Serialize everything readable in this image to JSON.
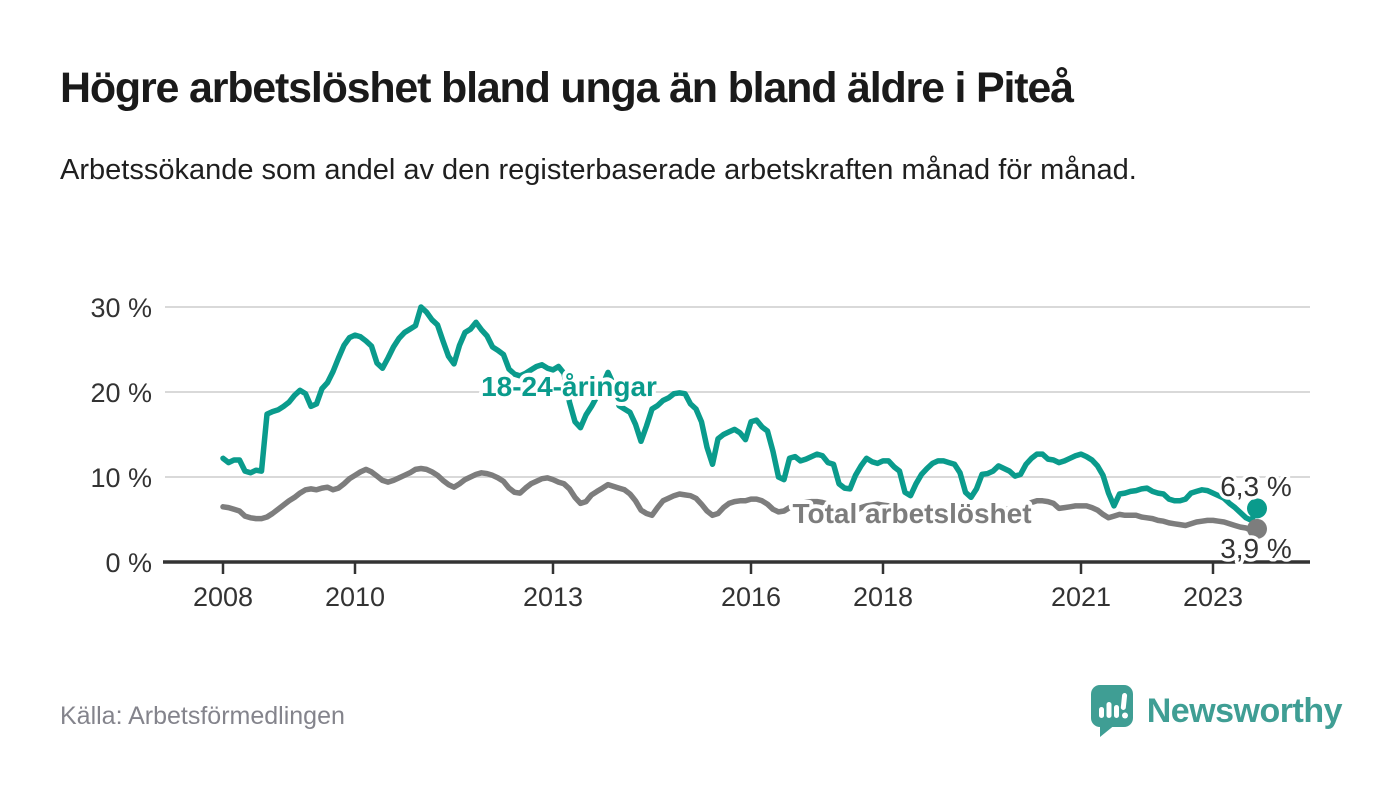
{
  "header": {
    "title": "Högre arbetslöshet bland unga än bland äldre i Piteå",
    "subtitle": "Arbetssökande som andel av den registerbaserade arbetskraften månad för månad."
  },
  "footer": {
    "source": "Källa: Arbetsförmedlingen",
    "brand_name": "Newsworthy"
  },
  "colors": {
    "young_line": "#0a9b8c",
    "total_line": "#7d7d7d",
    "axis": "#333333",
    "grid": "#d9d9d9",
    "title_text": "#1a1a1a",
    "muted_text": "#84848c",
    "brand_teal": "#3f9e94"
  },
  "chart_data": {
    "type": "line",
    "unit": "%",
    "frequency": "monthly",
    "x_start": "2008-01",
    "x_end": "2023-09",
    "grid": "horizontal",
    "ylim": [
      0,
      32
    ],
    "x_ticks": [
      2008,
      2010,
      2013,
      2016,
      2018,
      2021,
      2023
    ],
    "y_ticks": [
      0,
      10,
      20,
      30
    ],
    "y_tick_labels": [
      "0 %",
      "10 %",
      "20 %",
      "30 %"
    ],
    "series": [
      {
        "name": "18-24-åringar",
        "color": "#0a9b8c",
        "end_label": "6,3 %",
        "values": [
          12.2,
          11.7,
          12.0,
          12.0,
          10.7,
          10.5,
          10.8,
          10.7,
          17.4,
          17.7,
          17.9,
          18.3,
          18.8,
          19.6,
          20.2,
          19.8,
          18.3,
          18.6,
          20.4,
          21.1,
          22.4,
          24.0,
          25.5,
          26.4,
          26.7,
          26.5,
          26.0,
          25.4,
          23.4,
          22.8,
          24.0,
          25.3,
          26.3,
          27.0,
          27.4,
          27.8,
          30.0,
          29.4,
          28.5,
          27.9,
          26.0,
          24.2,
          23.3,
          25.5,
          27.0,
          27.4,
          28.2,
          27.3,
          26.6,
          25.3,
          24.9,
          24.4,
          22.7,
          22.1,
          21.9,
          22.2,
          22.6,
          23.0,
          23.2,
          22.8,
          22.6,
          23.0,
          22.2,
          18.8,
          16.5,
          15.8,
          17.3,
          18.3,
          19.5,
          20.8,
          22.3,
          20.9,
          18.4,
          18.0,
          17.6,
          16.2,
          14.2,
          16.0,
          18.0,
          18.4,
          19.0,
          19.3,
          19.8,
          19.9,
          19.8,
          18.6,
          18.0,
          16.5,
          13.5,
          11.5,
          14.5,
          15.0,
          15.3,
          15.6,
          15.2,
          14.4,
          16.5,
          16.7,
          15.9,
          15.4,
          13.0,
          10.0,
          9.7,
          12.2,
          12.4,
          11.9,
          12.1,
          12.4,
          12.7,
          12.5,
          11.7,
          11.5,
          9.2,
          8.7,
          8.6,
          10.2,
          11.3,
          12.2,
          11.8,
          11.6,
          11.9,
          11.9,
          11.2,
          10.7,
          8.2,
          7.8,
          9.2,
          10.3,
          11.0,
          11.6,
          11.9,
          11.9,
          11.7,
          11.5,
          10.5,
          8.2,
          7.6,
          8.6,
          10.3,
          10.4,
          10.7,
          11.3,
          11.0,
          10.7,
          10.1,
          10.3,
          11.5,
          12.2,
          12.7,
          12.7,
          12.1,
          12.0,
          11.7,
          11.9,
          12.2,
          12.5,
          12.7,
          12.4,
          12.0,
          11.3,
          10.2,
          8.1,
          6.6,
          8.0,
          8.1,
          8.3,
          8.4,
          8.6,
          8.7,
          8.3,
          8.1,
          8.0,
          7.4,
          7.2,
          7.2,
          7.4,
          8.1,
          8.3,
          8.5,
          8.4,
          8.1,
          7.8,
          7.5,
          6.9,
          6.4,
          5.8,
          5.2,
          4.9,
          6.3
        ]
      },
      {
        "name": "Total arbetslöshet",
        "color": "#7d7d7d",
        "end_label": "3,9 %",
        "values": [
          6.5,
          6.4,
          6.2,
          6.0,
          5.4,
          5.2,
          5.1,
          5.1,
          5.3,
          5.7,
          6.2,
          6.7,
          7.2,
          7.6,
          8.1,
          8.5,
          8.6,
          8.5,
          8.7,
          8.8,
          8.5,
          8.7,
          9.2,
          9.8,
          10.2,
          10.6,
          10.9,
          10.6,
          10.1,
          9.6,
          9.4,
          9.6,
          9.9,
          10.2,
          10.5,
          10.9,
          11.0,
          10.9,
          10.6,
          10.2,
          9.6,
          9.1,
          8.8,
          9.2,
          9.7,
          10.0,
          10.3,
          10.5,
          10.4,
          10.2,
          9.9,
          9.5,
          8.7,
          8.2,
          8.1,
          8.7,
          9.2,
          9.5,
          9.8,
          9.9,
          9.7,
          9.4,
          9.2,
          8.6,
          7.6,
          6.9,
          7.1,
          7.9,
          8.3,
          8.7,
          9.1,
          8.9,
          8.7,
          8.5,
          8.0,
          7.2,
          6.1,
          5.7,
          5.5,
          6.4,
          7.2,
          7.5,
          7.8,
          8.0,
          7.9,
          7.8,
          7.5,
          6.8,
          6.0,
          5.5,
          5.7,
          6.4,
          6.9,
          7.1,
          7.2,
          7.2,
          7.4,
          7.4,
          7.2,
          6.8,
          6.2,
          5.9,
          6.0,
          6.4,
          6.7,
          6.9,
          7.0,
          7.1,
          7.1,
          7.0,
          6.8,
          6.4,
          5.8,
          5.5,
          5.6,
          6.0,
          6.4,
          6.6,
          6.7,
          6.8,
          6.7,
          6.6,
          6.4,
          6.0,
          5.4,
          5.1,
          5.2,
          5.6,
          5.9,
          6.1,
          6.2,
          6.3,
          6.2,
          6.1,
          5.9,
          5.5,
          5.2,
          5.4,
          5.7,
          5.9,
          6.0,
          6.1,
          6.2,
          6.2,
          6.1,
          6.2,
          6.6,
          7.0,
          7.2,
          7.2,
          7.1,
          6.9,
          6.3,
          6.4,
          6.5,
          6.6,
          6.6,
          6.6,
          6.4,
          6.1,
          5.6,
          5.2,
          5.4,
          5.6,
          5.5,
          5.5,
          5.5,
          5.3,
          5.2,
          5.1,
          4.9,
          4.8,
          4.6,
          4.5,
          4.4,
          4.3,
          4.5,
          4.7,
          4.8,
          4.9,
          4.9,
          4.8,
          4.7,
          4.5,
          4.3,
          4.1,
          4.0,
          3.7,
          3.9
        ]
      }
    ]
  }
}
